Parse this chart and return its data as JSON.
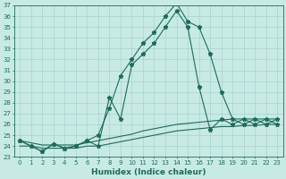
{
  "xlabel": "Humidex (Indice chaleur)",
  "ylabel": "",
  "x": [
    0,
    1,
    2,
    3,
    4,
    5,
    6,
    7,
    8,
    9,
    10,
    11,
    12,
    13,
    14,
    15,
    16,
    17,
    18,
    19,
    20,
    21,
    22,
    23
  ],
  "line1": [
    24.5,
    24.0,
    23.5,
    24.2,
    23.8,
    24.0,
    24.5,
    25.0,
    27.5,
    30.5,
    32.0,
    33.5,
    34.5,
    36.0,
    37.2,
    35.5,
    35.0,
    32.5,
    29.0,
    26.5,
    26.0,
    26.5,
    26.0,
    26.5
  ],
  "line2": [
    24.5,
    24.0,
    23.5,
    24.2,
    23.8,
    24.0,
    24.5,
    24.0,
    28.5,
    26.5,
    31.5,
    32.5,
    33.5,
    35.0,
    36.5,
    35.0,
    29.5,
    25.5,
    26.5,
    26.0,
    26.5,
    26.0,
    26.5,
    26.0
  ],
  "line3_min": [
    24.0,
    24.0,
    23.8,
    23.8,
    23.8,
    23.8,
    24.0,
    24.0,
    24.2,
    24.4,
    24.6,
    24.8,
    25.0,
    25.2,
    25.4,
    25.5,
    25.6,
    25.7,
    25.8,
    25.8,
    25.9,
    25.9,
    26.0,
    26.0
  ],
  "line3_max": [
    24.5,
    24.3,
    24.1,
    24.1,
    24.1,
    24.1,
    24.3,
    24.5,
    24.7,
    24.9,
    25.1,
    25.4,
    25.6,
    25.8,
    26.0,
    26.1,
    26.2,
    26.3,
    26.4,
    26.5,
    26.5,
    26.5,
    26.5,
    26.5
  ],
  "ylim_min": 23,
  "ylim_max": 37,
  "xlim_min": 0,
  "xlim_max": 23,
  "bg_color": "#c8eae5",
  "grid_color": "#a0ccc8",
  "line_color": "#1e6b5a",
  "marker": "*",
  "marker_size": 3.5,
  "lw": 0.8,
  "xlabel_fontsize": 6.5,
  "tick_fontsize": 5.0
}
